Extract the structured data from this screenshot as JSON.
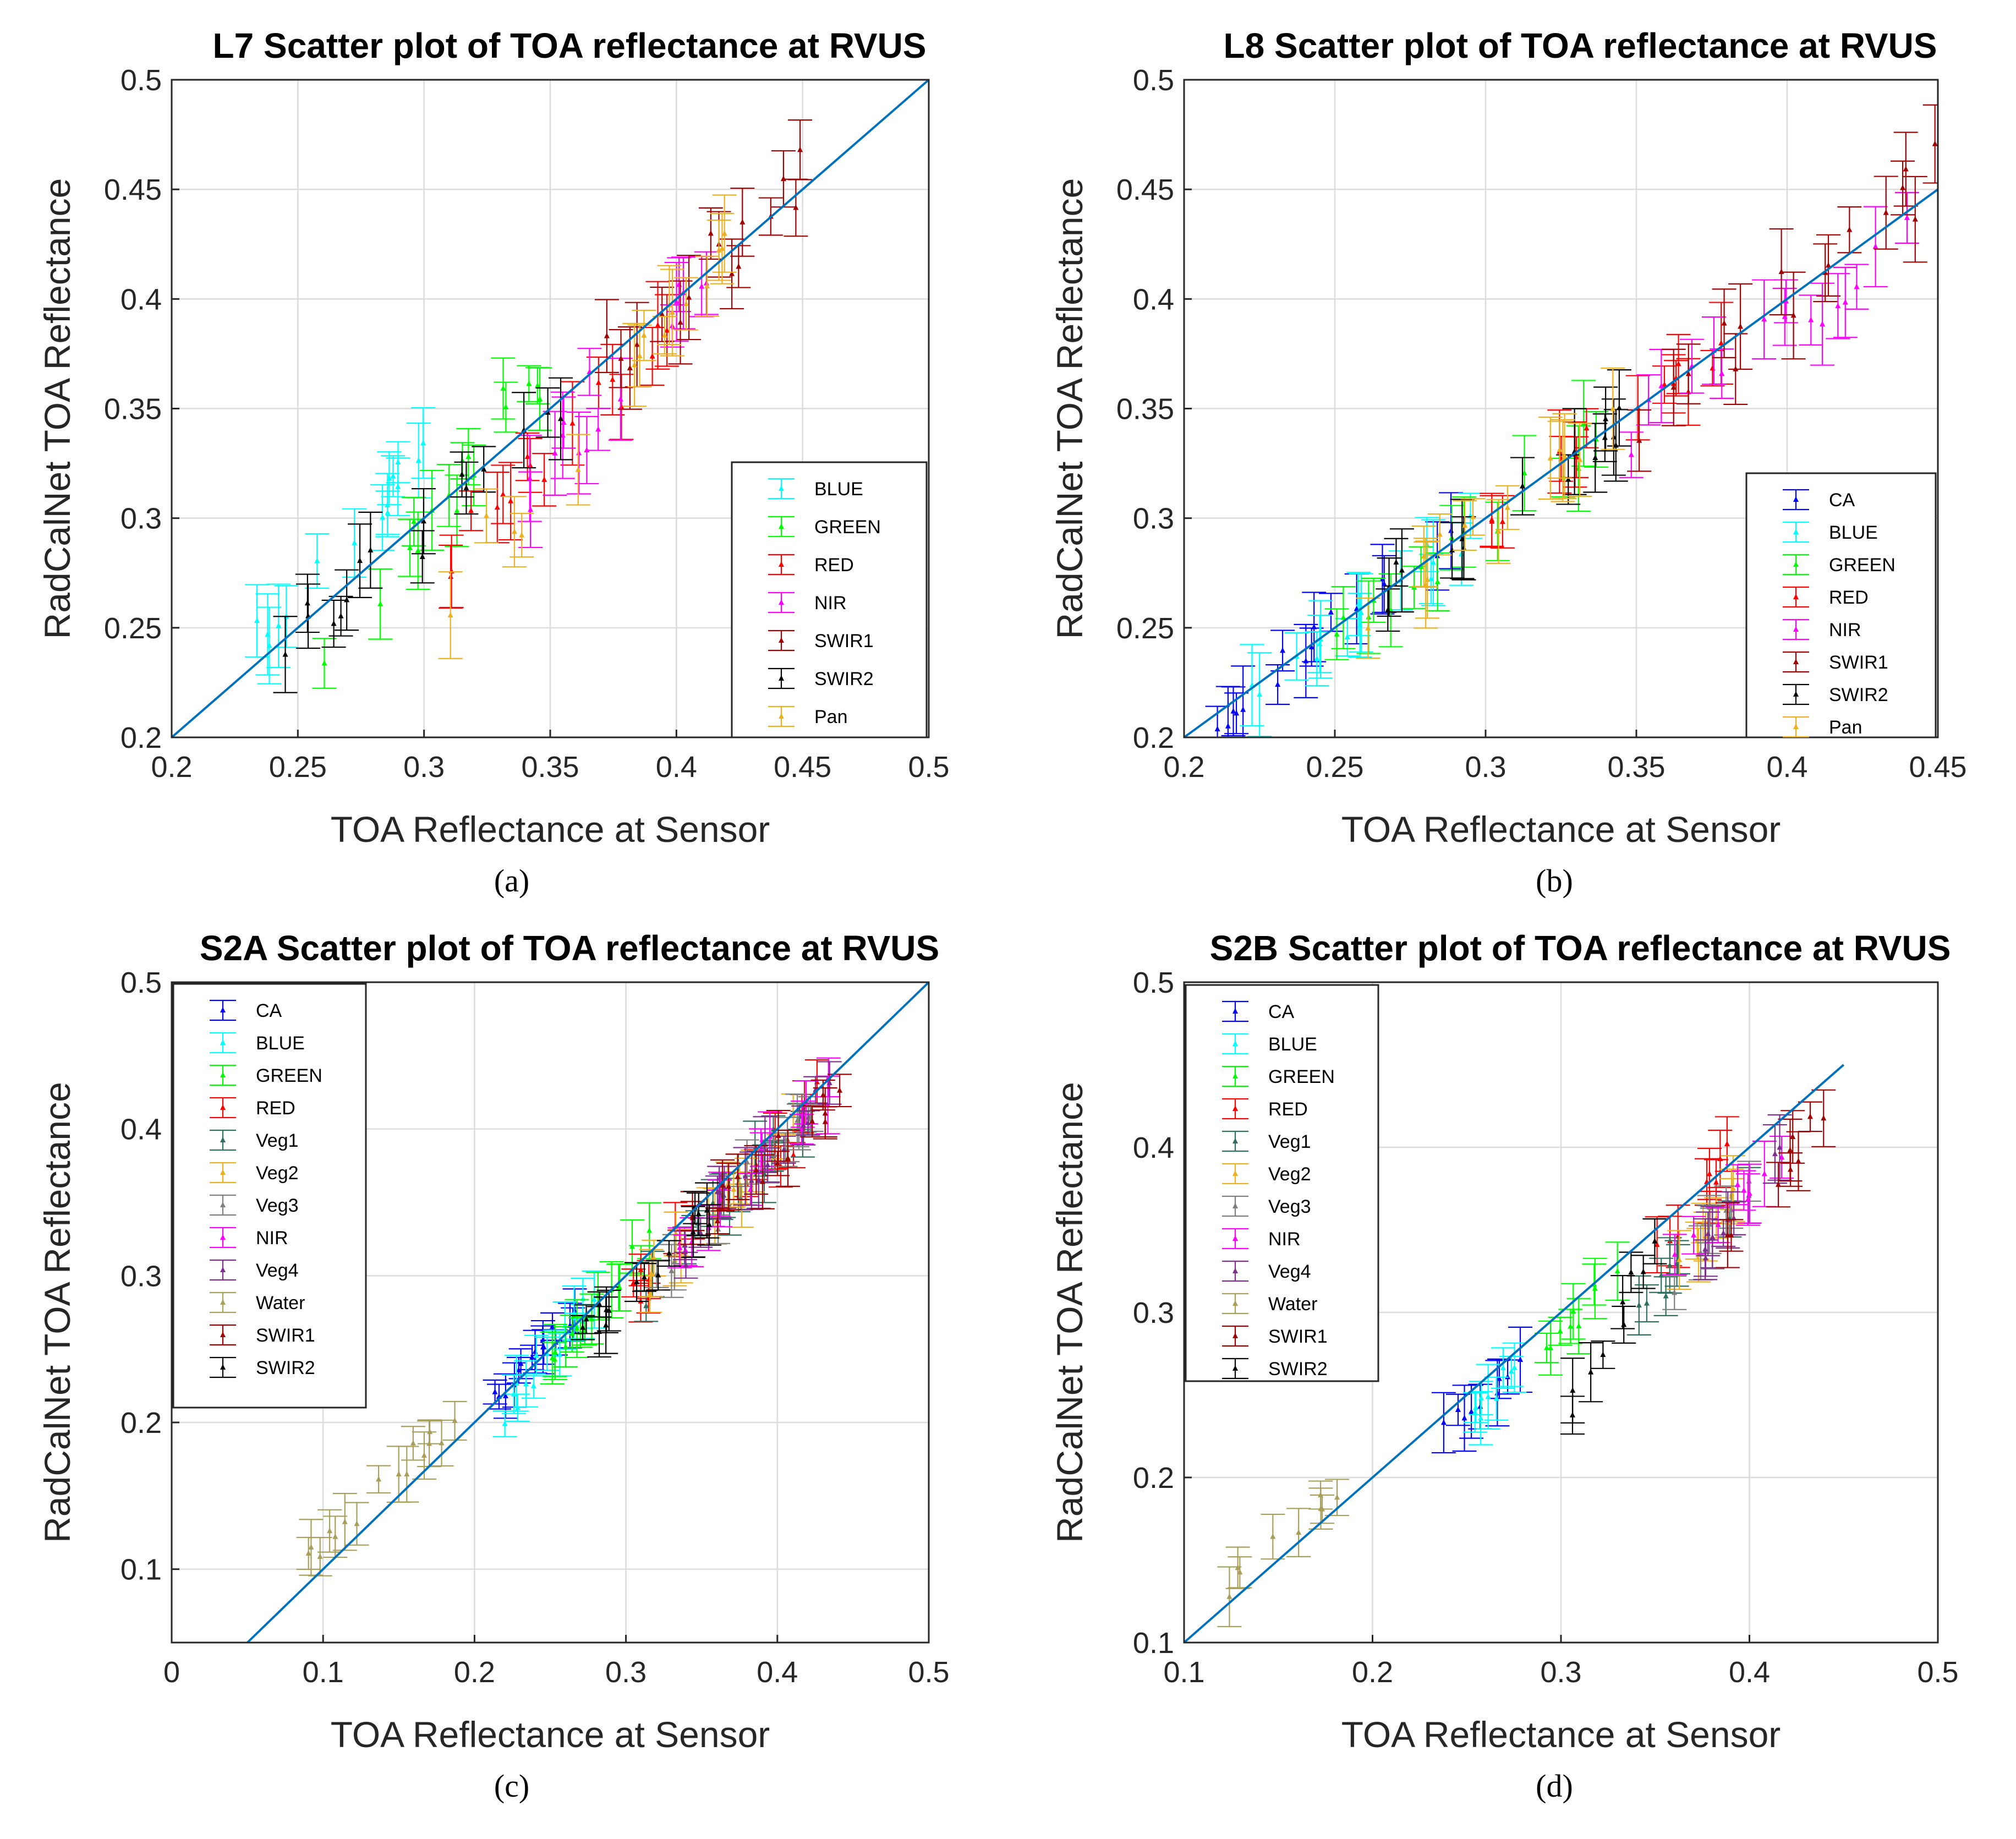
{
  "chart_data": [
    {
      "type": "scatter",
      "panel_label": "(a)",
      "title": "L7 Scatter plot of TOA reflectance at RVUS",
      "xlabel": "TOA Reflectance at Sensor",
      "ylabel": "RadCalNet TOA Reflectance",
      "xlim": [
        0.2,
        0.5
      ],
      "ylim": [
        0.2,
        0.5
      ],
      "xticks": [
        "0.2",
        "0.25",
        "0.3",
        "0.35",
        "0.4",
        "0.45",
        "0.5"
      ],
      "yticks": [
        "0.2",
        "0.25",
        "0.3",
        "0.35",
        "0.4",
        "0.45",
        "0.5"
      ],
      "grid": true,
      "legend_position": "bottom-right",
      "reference_line": {
        "label": "1:1 line",
        "from": [
          0.2,
          0.2
        ],
        "to": [
          0.5,
          0.5
        ],
        "color": "#0072BD"
      },
      "series": [
        {
          "name": "BLUE",
          "color": "#00FFFF",
          "x_range": [
            0.22,
            0.3
          ],
          "y_range": [
            0.225,
            0.33
          ]
        },
        {
          "name": "GREEN",
          "color": "#00FF00",
          "x_range": [
            0.26,
            0.35
          ],
          "y_range": [
            0.24,
            0.37
          ]
        },
        {
          "name": "RED",
          "color": "#FF0000",
          "x_range": [
            0.31,
            0.41
          ],
          "y_range": [
            0.28,
            0.4
          ]
        },
        {
          "name": "NIR",
          "color": "#FF00FF",
          "x_range": [
            0.33,
            0.43
          ],
          "y_range": [
            0.3,
            0.44
          ]
        },
        {
          "name": "SWIR1",
          "color": "#A00000",
          "x_range": [
            0.34,
            0.45
          ],
          "y_range": [
            0.33,
            0.46
          ]
        },
        {
          "name": "SWIR2",
          "color": "#000000",
          "x_range": [
            0.24,
            0.36
          ],
          "y_range": [
            0.24,
            0.35
          ]
        },
        {
          "name": "Pan",
          "color": "#EDB120",
          "x_range": [
            0.31,
            0.42
          ],
          "y_range": [
            0.27,
            0.42
          ]
        }
      ]
    },
    {
      "type": "scatter",
      "panel_label": "(b)",
      "title": "L8 Scatter plot of TOA reflectance at RVUS",
      "xlabel": "TOA Reflectance at Sensor",
      "ylabel": "RadCalNet TOA Reflectance",
      "xlim": [
        0.2,
        0.45
      ],
      "ylim": [
        0.2,
        0.5
      ],
      "xticks": [
        "0.2",
        "0.25",
        "0.3",
        "0.35",
        "0.4",
        "0.45"
      ],
      "yticks": [
        "0.2",
        "0.25",
        "0.3",
        "0.35",
        "0.4",
        "0.45",
        "0.5"
      ],
      "grid": true,
      "legend_position": "bottom-right",
      "reference_line": {
        "label": "1:1 line",
        "from": [
          0.2,
          0.2
        ],
        "to": [
          0.45,
          0.45
        ],
        "color": "#0072BD"
      },
      "series": [
        {
          "name": "CA",
          "color": "#0000FF",
          "x_range": [
            0.21,
            0.29
          ],
          "y_range": [
            0.21,
            0.29
          ]
        },
        {
          "name": "BLUE",
          "color": "#00FFFF",
          "x_range": [
            0.22,
            0.3
          ],
          "y_range": [
            0.22,
            0.3
          ]
        },
        {
          "name": "GREEN",
          "color": "#00FF00",
          "x_range": [
            0.25,
            0.34
          ],
          "y_range": [
            0.24,
            0.34
          ]
        },
        {
          "name": "RED",
          "color": "#FF0000",
          "x_range": [
            0.3,
            0.38
          ],
          "y_range": [
            0.3,
            0.38
          ]
        },
        {
          "name": "NIR",
          "color": "#FF00FF",
          "x_range": [
            0.33,
            0.44
          ],
          "y_range": [
            0.32,
            0.43
          ]
        },
        {
          "name": "SWIR1",
          "color": "#A00000",
          "x_range": [
            0.35,
            0.45
          ],
          "y_range": [
            0.34,
            0.46
          ]
        },
        {
          "name": "SWIR2",
          "color": "#000000",
          "x_range": [
            0.26,
            0.35
          ],
          "y_range": [
            0.26,
            0.35
          ]
        },
        {
          "name": "Pan",
          "color": "#EDB120",
          "x_range": [
            0.26,
            0.35
          ],
          "y_range": [
            0.26,
            0.35
          ]
        }
      ]
    },
    {
      "type": "scatter",
      "panel_label": "(c)",
      "title": "S2A Scatter plot of TOA reflectance at RVUS",
      "xlabel": "TOA Reflectance at Sensor",
      "ylabel": "RadCalNet TOA Reflectance",
      "xlim": [
        0,
        0.5
      ],
      "ylim": [
        0.05,
        0.5
      ],
      "xticks": [
        "0",
        "0.1",
        "0.2",
        "0.3",
        "0.4",
        "0.5"
      ],
      "yticks": [
        "0.1",
        "0.2",
        "0.3",
        "0.4",
        "0.5"
      ],
      "grid": true,
      "legend_position": "top-left",
      "reference_line": {
        "label": "1:1 line",
        "from": [
          0.05,
          0.05
        ],
        "to": [
          0.5,
          0.5
        ],
        "color": "#0072BD"
      },
      "series": [
        {
          "name": "CA",
          "color": "#0000FF",
          "x_range": [
            0.21,
            0.27
          ],
          "y_range": [
            0.21,
            0.28
          ]
        },
        {
          "name": "BLUE",
          "color": "#00FFFF",
          "x_range": [
            0.22,
            0.29
          ],
          "y_range": [
            0.21,
            0.3
          ]
        },
        {
          "name": "GREEN",
          "color": "#00FF00",
          "x_range": [
            0.25,
            0.32
          ],
          "y_range": [
            0.24,
            0.33
          ]
        },
        {
          "name": "RED",
          "color": "#FF0000",
          "x_range": [
            0.3,
            0.43
          ],
          "y_range": [
            0.28,
            0.42
          ]
        },
        {
          "name": "Veg1",
          "color": "#2F6F5F",
          "x_range": [
            0.3,
            0.42
          ],
          "y_range": [
            0.28,
            0.41
          ]
        },
        {
          "name": "Veg2",
          "color": "#EDB120",
          "x_range": [
            0.31,
            0.42
          ],
          "y_range": [
            0.29,
            0.41
          ]
        },
        {
          "name": "Veg3",
          "color": "#7F7F7F",
          "x_range": [
            0.32,
            0.43
          ],
          "y_range": [
            0.3,
            0.42
          ]
        },
        {
          "name": "NIR",
          "color": "#FF00FF",
          "x_range": [
            0.33,
            0.44
          ],
          "y_range": [
            0.31,
            0.43
          ]
        },
        {
          "name": "Veg4",
          "color": "#7E2F8E",
          "x_range": [
            0.33,
            0.44
          ],
          "y_range": [
            0.31,
            0.43
          ]
        },
        {
          "name": "Water",
          "color": "#A89F5A",
          "x_range": [
            0.09,
            0.19
          ],
          "y_range": [
            0.11,
            0.21
          ]
        },
        {
          "name": "SWIR1",
          "color": "#A00000",
          "x_range": [
            0.34,
            0.45
          ],
          "y_range": [
            0.33,
            0.43
          ]
        },
        {
          "name": "SWIR2",
          "color": "#000000",
          "x_range": [
            0.27,
            0.36
          ],
          "y_range": [
            0.26,
            0.35
          ]
        }
      ]
    },
    {
      "type": "scatter",
      "panel_label": "(d)",
      "title": "S2B Scatter plot of TOA reflectance at RVUS",
      "xlabel": "TOA Reflectance at Sensor",
      "ylabel": "RadCalNet TOA Reflectance",
      "xlim": [
        0.1,
        0.5
      ],
      "ylim": [
        0.1,
        0.5
      ],
      "xticks": [
        "0.1",
        "0.2",
        "0.3",
        "0.4",
        "0.5"
      ],
      "yticks": [
        "0.1",
        "0.2",
        "0.3",
        "0.4",
        "0.5"
      ],
      "grid": true,
      "legend_position": "top-left",
      "reference_line": {
        "label": "1:1 line",
        "from": [
          0.1,
          0.1
        ],
        "to": [
          0.45,
          0.45
        ],
        "color": "#0072BD"
      },
      "series": [
        {
          "name": "CA",
          "color": "#0000FF",
          "x_range": [
            0.23,
            0.28
          ],
          "y_range": [
            0.22,
            0.27
          ]
        },
        {
          "name": "BLUE",
          "color": "#00FFFF",
          "x_range": [
            0.25,
            0.29
          ],
          "y_range": [
            0.23,
            0.29
          ]
        },
        {
          "name": "GREEN",
          "color": "#00FF00",
          "x_range": [
            0.29,
            0.33
          ],
          "y_range": [
            0.27,
            0.33
          ]
        },
        {
          "name": "RED",
          "color": "#FF0000",
          "x_range": [
            0.33,
            0.4
          ],
          "y_range": [
            0.3,
            0.41
          ]
        },
        {
          "name": "Veg1",
          "color": "#2F6F5F",
          "x_range": [
            0.34,
            0.4
          ],
          "y_range": [
            0.3,
            0.37
          ]
        },
        {
          "name": "Veg2",
          "color": "#EDB120",
          "x_range": [
            0.35,
            0.4
          ],
          "y_range": [
            0.31,
            0.38
          ]
        },
        {
          "name": "Veg3",
          "color": "#7F7F7F",
          "x_range": [
            0.36,
            0.41
          ],
          "y_range": [
            0.32,
            0.39
          ]
        },
        {
          "name": "NIR",
          "color": "#FF00FF",
          "x_range": [
            0.36,
            0.42
          ],
          "y_range": [
            0.33,
            0.4
          ]
        },
        {
          "name": "Veg4",
          "color": "#7E2F8E",
          "x_range": [
            0.37,
            0.42
          ],
          "y_range": [
            0.33,
            0.41
          ]
        },
        {
          "name": "Water",
          "color": "#A89F5A",
          "x_range": [
            0.12,
            0.19
          ],
          "y_range": [
            0.13,
            0.2
          ]
        },
        {
          "name": "SWIR1",
          "color": "#A00000",
          "x_range": [
            0.38,
            0.44
          ],
          "y_range": [
            0.34,
            0.42
          ]
        },
        {
          "name": "SWIR2",
          "color": "#000000",
          "x_range": [
            0.3,
            0.35
          ],
          "y_range": [
            0.23,
            0.34
          ]
        }
      ]
    }
  ]
}
